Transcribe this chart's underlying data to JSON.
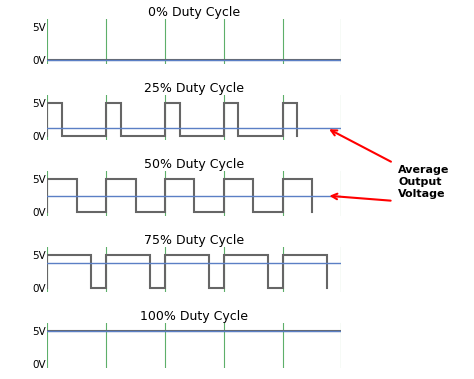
{
  "titles": [
    "0% Duty Cycle",
    "25% Duty Cycle",
    "50% Duty Cycle",
    "75% Duty Cycle",
    "100% Duty Cycle"
  ],
  "duty_cycles": [
    0.0,
    0.25,
    0.5,
    0.75,
    1.0
  ],
  "num_periods": 5,
  "period": 1.0,
  "vhigh": 5.0,
  "vlow": 0.0,
  "signal_color": "#666666",
  "avg_line_color": "#5B7FC5",
  "period_line_color": "#5DAF6A",
  "background_color": "#ffffff",
  "signal_linewidth": 1.5,
  "avg_linewidth": 1.0,
  "period_linewidth": 0.8,
  "title_fontsize": 9,
  "ylabel_fontsize": 7.5,
  "annotation_text": "Average\nOutput\nVoltage",
  "annotation_fontsize": 8,
  "figsize": [
    4.74,
    3.79
  ],
  "dpi": 100
}
